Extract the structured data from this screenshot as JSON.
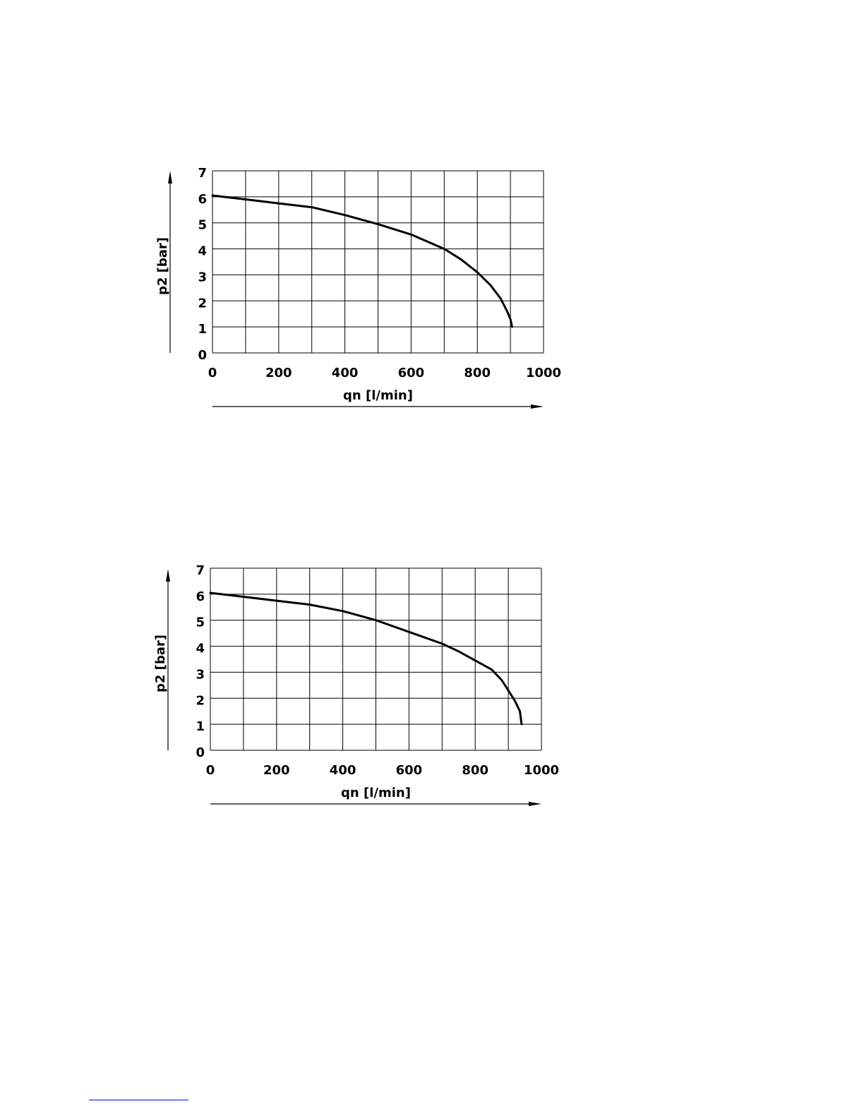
{
  "colors": {
    "ink": "#000000",
    "footer_rule": "#0000ff"
  },
  "chart_data": [
    {
      "type": "line",
      "xlabel": "qn [l/min]",
      "ylabel": "p2 [bar]",
      "xlim": [
        0,
        1000
      ],
      "ylim": [
        0,
        7
      ],
      "x_ticks": [
        "0",
        "200",
        "400",
        "600",
        "800",
        "1000"
      ],
      "y_ticks": [
        "0",
        "1",
        "2",
        "3",
        "4",
        "5",
        "6",
        "7"
      ],
      "grid": true,
      "series": [
        {
          "x": [
            0,
            100,
            200,
            300,
            400,
            500,
            600,
            700,
            750,
            800,
            840,
            870,
            890,
            900,
            905
          ],
          "y": [
            6.05,
            5.9,
            5.75,
            5.6,
            5.3,
            4.95,
            4.55,
            4.0,
            3.6,
            3.1,
            2.6,
            2.1,
            1.6,
            1.3,
            1.0
          ]
        }
      ]
    },
    {
      "type": "line",
      "xlabel": "qn [l/min]",
      "ylabel": "p2 [bar]",
      "xlim": [
        0,
        1000
      ],
      "ylim": [
        0,
        7
      ],
      "x_ticks": [
        "0",
        "200",
        "400",
        "600",
        "800",
        "1000"
      ],
      "y_ticks": [
        "0",
        "1",
        "2",
        "3",
        "4",
        "5",
        "6",
        "7"
      ],
      "grid": true,
      "series": [
        {
          "x": [
            0,
            100,
            200,
            300,
            400,
            500,
            600,
            700,
            750,
            800,
            850,
            880,
            900,
            920,
            935,
            940
          ],
          "y": [
            6.05,
            5.9,
            5.75,
            5.6,
            5.35,
            5.0,
            4.55,
            4.1,
            3.8,
            3.45,
            3.1,
            2.7,
            2.3,
            1.9,
            1.5,
            1.0
          ]
        }
      ]
    }
  ]
}
